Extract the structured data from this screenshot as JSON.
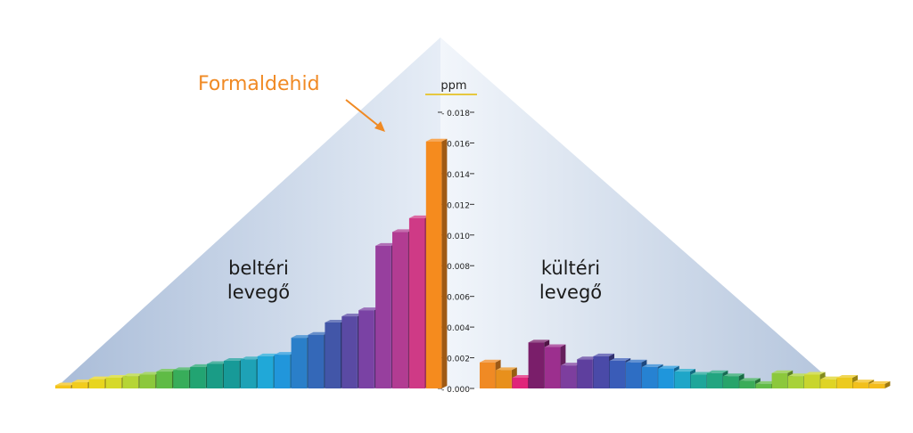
{
  "chart_data": {
    "type": "bar",
    "unit_label": "ppm",
    "ylim": [
      0,
      0.018
    ],
    "y_ticks": [
      "0.000",
      "0.002",
      "0.004",
      "0.006",
      "0.008",
      "0.010",
      "0.012",
      "0.014",
      "0.016",
      "0.018"
    ],
    "annotation": "Formaldehid",
    "left_group": {
      "label_line1": "beltéri",
      "label_line2": "levegő",
      "values": [
        0.0002,
        0.0004,
        0.0006,
        0.0007,
        0.0008,
        0.0009,
        0.0011,
        0.0012,
        0.0014,
        0.0016,
        0.0018,
        0.0019,
        0.0021,
        0.0022,
        0.0033,
        0.0035,
        0.0043,
        0.0047,
        0.0051,
        0.0093,
        0.0102,
        0.0111,
        0.0161
      ],
      "colors": [
        "#f4c41a",
        "#f2cc1c",
        "#e8d51e",
        "#d6d92a",
        "#b6d535",
        "#8cc83c",
        "#5fbb45",
        "#38ad5a",
        "#22a472",
        "#1a9c86",
        "#179a98",
        "#1ea2b6",
        "#20a8d8",
        "#2196db",
        "#2a7fc9",
        "#3468b8",
        "#4256a8",
        "#5a4aa4",
        "#7a42a4",
        "#973f9e",
        "#b23c92",
        "#cf3a86",
        "#f58b1e"
      ]
    },
    "right_group": {
      "label_line1": "kültéri",
      "label_line2": "levegő",
      "values": [
        0.0017,
        0.0012,
        0.0007,
        0.003,
        0.0027,
        0.0015,
        0.0019,
        0.0021,
        0.0018,
        0.0017,
        0.0014,
        0.0013,
        0.0011,
        0.0009,
        0.001,
        0.0008,
        0.0005,
        0.0003,
        0.001,
        0.0008,
        0.0009,
        0.0006,
        0.0007,
        0.0004,
        0.0003
      ],
      "colors": [
        "#f08a24",
        "#e8901c",
        "#e0247a",
        "#7a1e6a",
        "#9c2f8e",
        "#7d3e9e",
        "#5e3f9e",
        "#4a4aa8",
        "#3a5cb8",
        "#2e6ec4",
        "#2682d2",
        "#1f96dc",
        "#1ea6c8",
        "#1ea69a",
        "#23a580",
        "#27a46a",
        "#3aac58",
        "#62bb48",
        "#8cc83c",
        "#a8d23a",
        "#c8d52e",
        "#dfd424",
        "#ecca1e",
        "#f2c01c",
        "#f4bc1a"
      ]
    }
  }
}
